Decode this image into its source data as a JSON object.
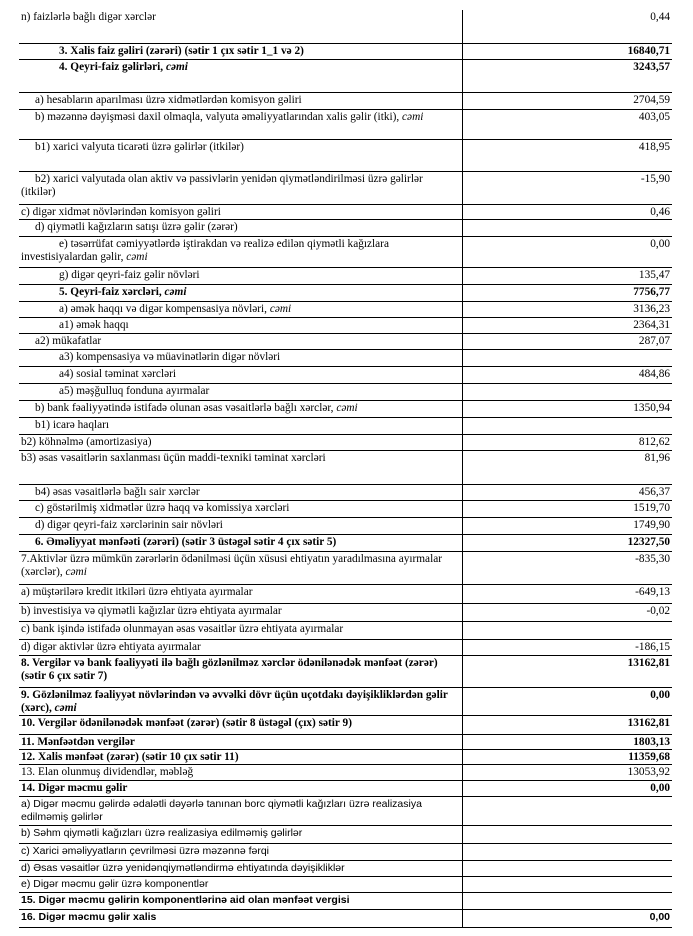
{
  "table": {
    "rows": [
      {
        "label": "n) faizlərlə bağlı digər xərclər",
        "value": "0,44"
      },
      {
        "label": "3. Xalis faiz gəliri (zərəri) (sətir 1 çıx sətir 1_1 və 2)",
        "value": "16840,71"
      },
      {
        "label": "4. Qeyri-faiz gəlirləri,",
        "italic": "cəmi",
        "value": "3243,57"
      },
      {
        "label": "a) hesabların aparılması üzrə xidmətlərdən komisyon gəliri",
        "value": "2704,59"
      },
      {
        "label": "b) məzənnə dəyişməsi daxil olmaqla, valyuta əməliyyatlarından xalis gəlir (itki),",
        "italic": "cəmi",
        "value": "403,05"
      },
      {
        "label": "b1) xarici valyuta ticarəti üzrə gəlirlər (itkilər)",
        "value": "418,95"
      },
      {
        "label": "b2) xarici valyutada olan aktiv və passivlərin yenidən qiymətləndirilməsi üzrə gəlirlər (itkilər)",
        "value": "-15,90"
      },
      {
        "label": "c) digər xidmət növlərindən komisyon gəliri",
        "value": "0,46"
      },
      {
        "label": "d) qiymətli kağızların satışı üzrə gəlir (zərər)"
      },
      {
        "label": "e) təsərrüfat cəmiyyətlərdə iştirakdan və realizə edilən qiymətli kağızlara investisiyalardan gəlir,",
        "italic": "cəmi",
        "value": "0,00"
      },
      {
        "label": "g) digər qeyri-faiz gəlir növləri",
        "value": "135,47"
      },
      {
        "label": "5. Qeyri-faiz xərcləri,",
        "italic": "cəmi",
        "value": "7756,77"
      },
      {
        "label": "a) əmək haqqı və digər kompensasiya növləri,",
        "italic": "cəmi",
        "value": "3136,23"
      },
      {
        "label": "a1) əmək haqqı",
        "value": "2364,31"
      },
      {
        "label": "a2) mükafatlar",
        "value": "287,07"
      },
      {
        "label": "a3) kompensasiya və müavinətlərin digər növləri"
      },
      {
        "label": "a4) sosial təminat xərcləri",
        "value": "484,86"
      },
      {
        "label": "a5) məşğulluq fonduna ayırmalar"
      },
      {
        "label": "b) bank fəaliyyətində istifadə olunan əsas vəsaitlərlə bağlı xərclər,",
        "italic": "cəmi",
        "value": "1350,94"
      },
      {
        "label": "b1) icarə haqları"
      },
      {
        "label": "b2) köhnəlmə (amortizasiya)",
        "value": "812,62"
      },
      {
        "label": "b3) əsas vəsaitlərin saxlanması üçün maddi-texniki təminat xərcləri",
        "value": "81,96"
      },
      {
        "label": "b4) əsas vəsaitlərlə bağlı sair xərclər",
        "value": "456,37"
      },
      {
        "label": "c) göstərilmiş xidmətlər üzrə haqq və komissiya xərcləri",
        "value": "1519,70"
      },
      {
        "label": "d) digər qeyri-faiz xərclərinin sair növləri",
        "value": "1749,90"
      },
      {
        "label": "6. Əməliyyat mənfəəti (zərəri) (sətir 3 üstəgəl sətir 4 çıx sətir 5)",
        "value": "12327,50"
      },
      {
        "label": "7.Aktivlər üzrə mümkün zərərlərin ödənilməsi üçün xüsusi ehtiyatın yaradılmasına ayırmalar (xərclər),",
        "italic": "cəmi",
        "value": "-835,30"
      },
      {
        "label": "a) müştərilərə kredit itkiləri üzrə ehtiyata ayırmalar",
        "value": "-649,13"
      },
      {
        "label": "b) investisiya və qiymətli kağızlar üzrə ehtiyata ayırmalar",
        "value": "-0,02"
      },
      {
        "label": "c) bank işində istifadə olunmayan əsas vəsaitlər üzrə ehtiyata ayırmalar"
      },
      {
        "label": "d) digər aktivlər üzrə ehtiyata ayırmalar",
        "value": "-186,15"
      },
      {
        "label": "8. Vergilər və bank fəaliyyəti ilə bağlı gözlənilməz xərclər ödənilənədək mənfəət (zərər) (sətir 6 çıx sətir 7)",
        "value": "13162,81"
      },
      {
        "label": "9. Gözlənilməz fəaliyyət növlərindən və əvvəlki dövr üçün uçotdakı dəyişikliklərdən gəlir (xərc),",
        "italic": "cəmi",
        "value": "0,00"
      },
      {
        "label": "10. Vergilər ödənilənədək mənfəət (zərər) (sətir 8 üstəgəl (çıx) sətir 9)",
        "value": "13162,81"
      },
      {
        "label": "11. Mənfəətdən vergilər",
        "value": "1803,13"
      },
      {
        "label": "12. Xalis mənfəət (zərər) (sətir 10 çıx sətir 11)",
        "value": "11359,68"
      },
      {
        "label": "13. Elan olunmuş dividendlər, məbləğ",
        "value": "13053,92"
      },
      {
        "label": "14. Digər məcmu gəlir",
        "value": "0,00"
      },
      {
        "label": "a) Digər məcmu gəlirdə ədalətli dəyərlə tanınan borc qiymətli kağızları üzrə realizasiya edilməmiş gəlirlər"
      },
      {
        "label": "b) Səhm qiymətli kağızları üzrə realizasiya edilməmiş gəlirlər"
      },
      {
        "label": "c) Xarici əməliyyatların çevrilməsi üzrə məzənnə fərqi"
      },
      {
        "label": "d) Əsas vəsaitlər üzrə yenidənqiymətləndirmə ehtiyatında dəyişikliklər"
      },
      {
        "label": "e) Digər məcmu gəlir üzrə komponentlər"
      },
      {
        "label": "15. Digər məcmu gəlirin komponentlərinə aid olan mənfəət vergisi"
      },
      {
        "label": "16. Digər məcmu gəlir xalis",
        "value": "0,00"
      }
    ]
  }
}
